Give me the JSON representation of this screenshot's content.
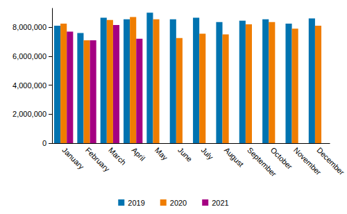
{
  "chart_data": {
    "type": "bar",
    "categories": [
      "January",
      "February",
      "March",
      "April",
      "May",
      "June",
      "July",
      "August",
      "September",
      "October",
      "November",
      "December"
    ],
    "series": [
      {
        "name": "2019",
        "color": "#0073b0",
        "values": [
          8100000,
          7600000,
          8650000,
          8550000,
          9000000,
          8550000,
          8650000,
          8350000,
          8450000,
          8550000,
          8250000,
          8600000
        ]
      },
      {
        "name": "2020",
        "color": "#ef7d00",
        "values": [
          8250000,
          7100000,
          8500000,
          8700000,
          8550000,
          7250000,
          7550000,
          7500000,
          8200000,
          8350000,
          7900000,
          8100000
        ]
      },
      {
        "name": "2021",
        "color": "#a50082",
        "values": [
          7700000,
          7100000,
          8150000,
          7200000,
          null,
          null,
          null,
          null,
          null,
          null,
          null,
          null
        ]
      }
    ],
    "ylim": [
      0,
      9300000
    ],
    "yticks": [
      0,
      {
        "value": 2000000,
        "label": "2,000,000"
      },
      {
        "value": 4000000,
        "label": "4,000,000"
      },
      {
        "value": 6000000,
        "label": "6,000,000"
      },
      {
        "value": 8000000,
        "label": "8,000,000"
      }
    ],
    "grid": false,
    "legend": "bottom"
  }
}
